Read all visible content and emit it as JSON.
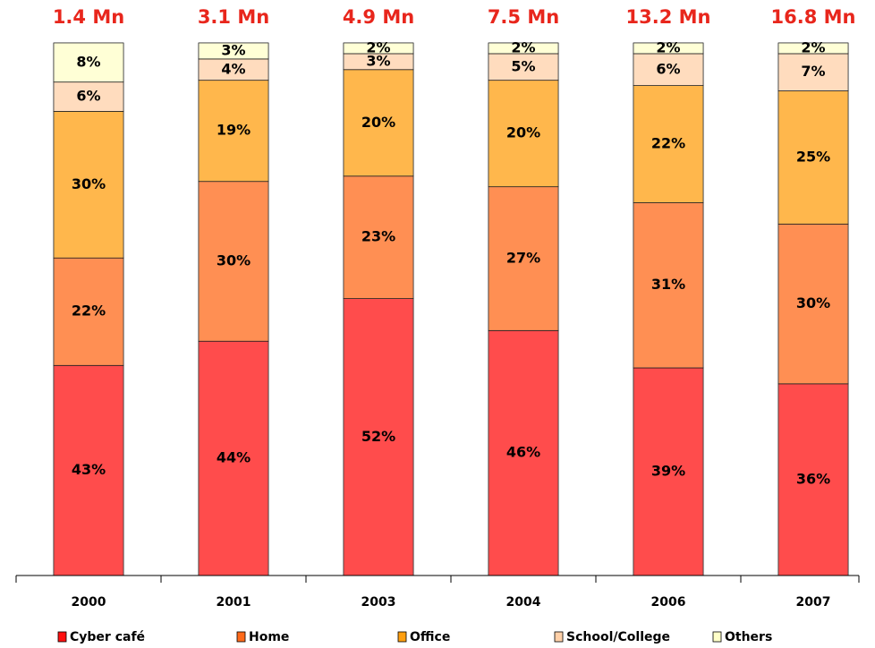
{
  "chart_data": {
    "type": "stacked_percent",
    "categories": [
      "2000",
      "2001",
      "2003",
      "2004",
      "2006",
      "2007"
    ],
    "top_labels": [
      "1.4 Mn",
      "3.1 Mn",
      "4.9 Mn",
      "7.5 Mn",
      "13.2 Mn",
      "16.8 Mn"
    ],
    "legend": "bottom",
    "series": [
      {
        "name": "Cyber café",
        "color": "#ff1010",
        "values": [
          43,
          44,
          52,
          46,
          39,
          36
        ],
        "value_labels": [
          "43%",
          "44%",
          "52%",
          "46%",
          "39%",
          "36%"
        ]
      },
      {
        "name": "Home",
        "color": "#ff6a1a",
        "values": [
          22,
          30,
          23,
          27,
          31,
          30
        ],
        "value_labels": [
          "22%",
          "30%",
          "23%",
          "27%",
          "31%",
          "30%"
        ]
      },
      {
        "name": "Office",
        "color": "#ff9f10",
        "values": [
          30,
          19,
          20,
          20,
          22,
          25
        ],
        "value_labels": [
          "30%",
          "19%",
          "20%",
          "20%",
          "22%",
          "25%"
        ]
      },
      {
        "name": "School/College",
        "color": "#ffd0a8",
        "values": [
          6,
          4,
          3,
          5,
          6,
          7
        ],
        "value_labels": [
          "6%",
          "4%",
          "3%",
          "5%",
          "6%",
          "7%"
        ]
      },
      {
        "name": "Others",
        "color": "#ffffc8",
        "values": [
          8,
          3,
          2,
          2,
          2,
          2
        ],
        "value_labels": [
          "8%",
          "3%",
          "2%",
          "2%",
          "2%",
          "2%"
        ]
      }
    ]
  }
}
